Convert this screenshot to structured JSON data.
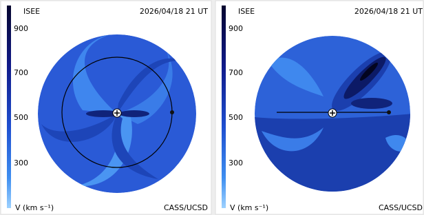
{
  "panels": [
    {
      "label": "ISEE",
      "date": "2026/04/18 21 UT",
      "scale_ticks": [
        "900",
        "700",
        "500",
        "300"
      ],
      "scale_label": "V (km s⁻¹)",
      "credit": "CASS/UCSD"
    },
    {
      "label": "ISEE",
      "date": "2026/04/18 21 UT",
      "scale_ticks": [
        "900",
        "700",
        "500",
        "300"
      ],
      "scale_label": "V (km s⁻¹)",
      "credit": "CASS/UCSD"
    }
  ]
}
